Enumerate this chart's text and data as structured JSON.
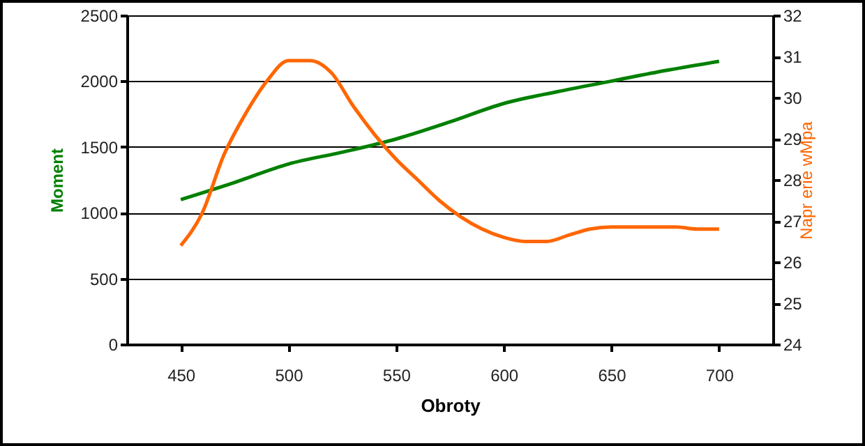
{
  "chart_data": {
    "type": "line",
    "xlabel": "Obroty",
    "ylabel": "Moment",
    "y2label": "Napr erie wMpa",
    "xlim": [
      425,
      725
    ],
    "xticks": [
      450,
      500,
      550,
      600,
      650,
      700
    ],
    "ylim": [
      0,
      2500
    ],
    "yticks": [
      0,
      500,
      1000,
      1500,
      2000,
      2500
    ],
    "y2lim": [
      24,
      32
    ],
    "y2ticks": [
      24,
      25,
      26,
      27,
      28,
      29,
      30,
      31,
      32
    ],
    "grid": "y",
    "marker": "none",
    "line_style": "solid",
    "series": [
      {
        "color": "#008000",
        "x": [
          450,
          475,
          500,
          525,
          550,
          575,
          600,
          625,
          650,
          675,
          700
        ],
        "values": [
          1100,
          1230,
          1370,
          1460,
          1560,
          1690,
          1830,
          1920,
          2000,
          2080,
          2150
        ]
      },
      {
        "color": "#ff6600",
        "axis": "y2",
        "x": [
          450,
          460,
          470,
          480,
          490,
          500,
          510,
          520,
          530,
          540,
          550,
          560,
          570,
          580,
          590,
          600,
          610,
          620,
          630,
          640,
          650,
          660,
          670,
          680,
          690,
          700
        ],
        "values": [
          26.4,
          27.2,
          28.6,
          29.6,
          30.4,
          30.9,
          30.9,
          30.6,
          29.8,
          29.1,
          28.5,
          28.0,
          27.5,
          27.1,
          26.8,
          26.6,
          26.5,
          26.5,
          26.65,
          26.8,
          26.85,
          26.85,
          26.85,
          26.85,
          26.8,
          26.8
        ]
      }
    ]
  }
}
